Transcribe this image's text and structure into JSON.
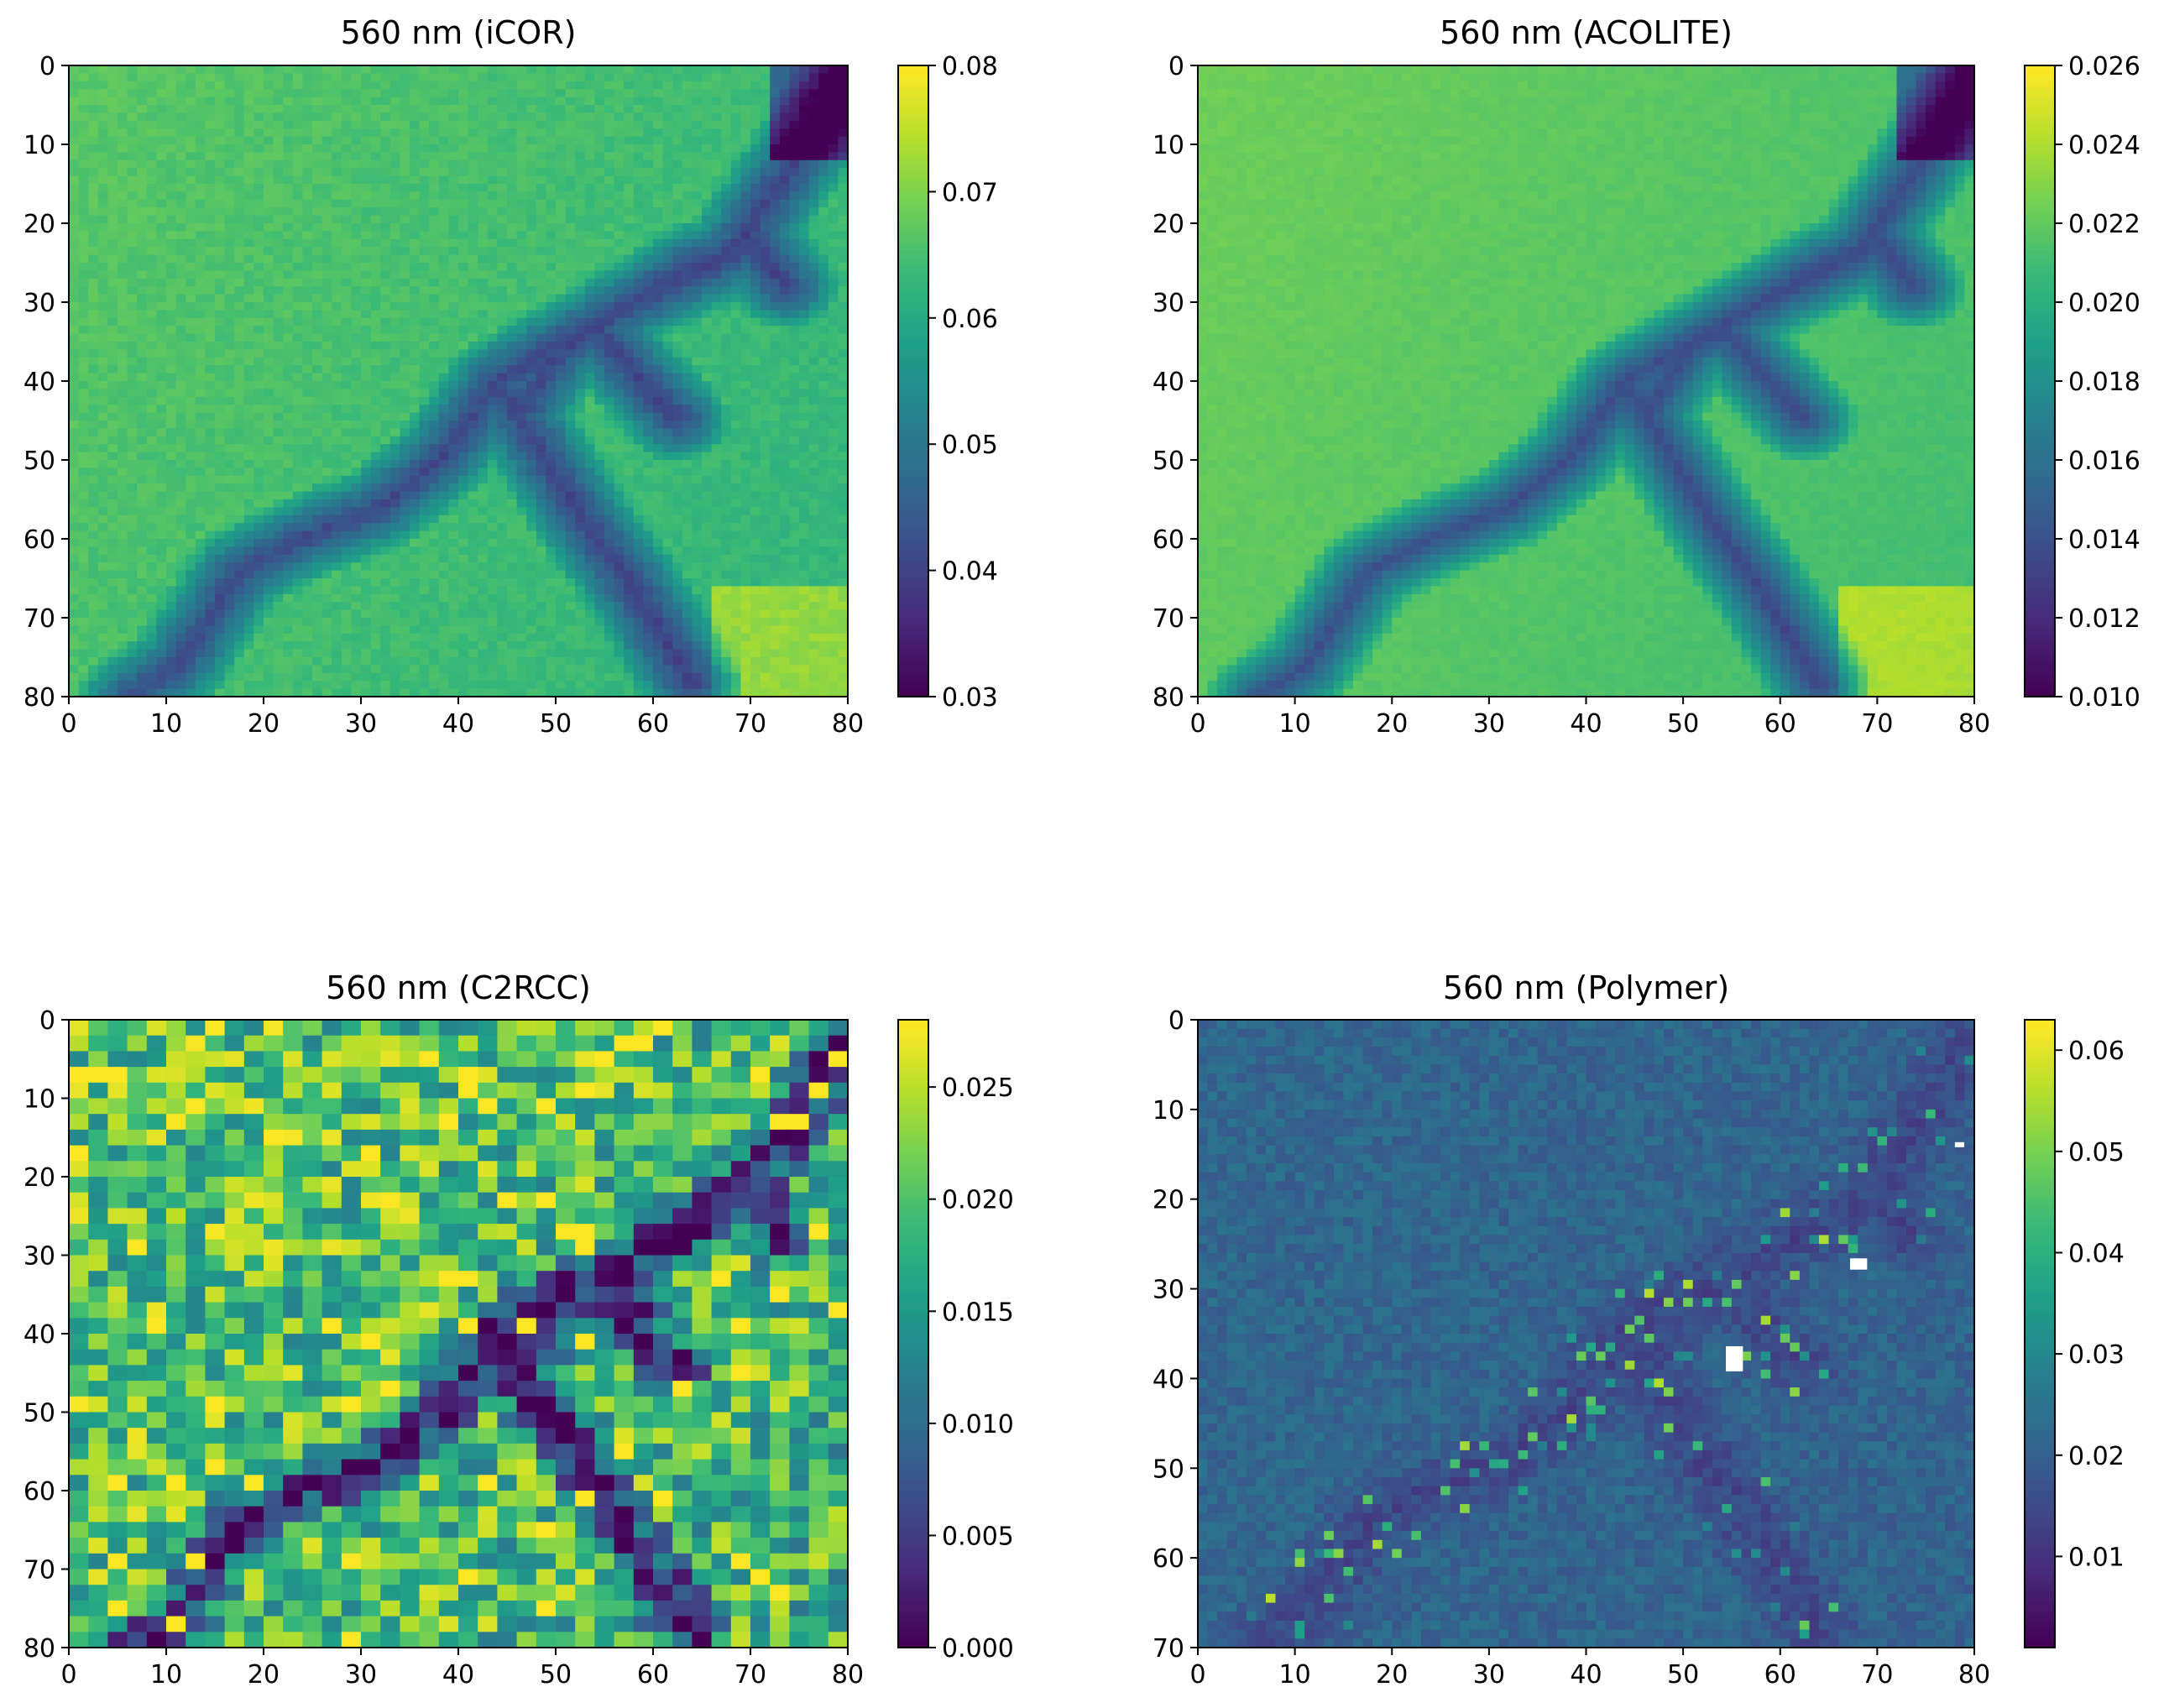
{
  "colormap": "viridis",
  "colormap_stops": [
    "#440154",
    "#482878",
    "#3e4a89",
    "#31688e",
    "#26828e",
    "#1f9e89",
    "#35b779",
    "#6ece58",
    "#b5de2b",
    "#fde725"
  ],
  "chart_data": [
    {
      "type": "heatmap",
      "title": "560 nm (iCOR)",
      "x_ticks": [
        0,
        10,
        20,
        30,
        40,
        50,
        60,
        70,
        80
      ],
      "y_ticks": [
        0,
        10,
        20,
        30,
        40,
        50,
        60,
        70,
        80
      ],
      "xlim": [
        0,
        80
      ],
      "ylim": [
        80,
        0
      ],
      "grid_shape": [
        80,
        80
      ],
      "value_range": [
        0.03,
        0.08
      ],
      "colorbar_ticks": [
        "0.03",
        "0.04",
        "0.05",
        "0.06",
        "0.07",
        "0.08"
      ],
      "colorbar_values": [
        0.03,
        0.04,
        0.05,
        0.06,
        0.07,
        0.08
      ],
      "background_level": 0.064,
      "feature_level": 0.04,
      "noise": 0.04,
      "bottom_right_bright": true
    },
    {
      "type": "heatmap",
      "title": "560 nm (ACOLITE)",
      "x_ticks": [
        0,
        10,
        20,
        30,
        40,
        50,
        60,
        70,
        80
      ],
      "y_ticks": [
        0,
        10,
        20,
        30,
        40,
        50,
        60,
        70,
        80
      ],
      "xlim": [
        0,
        80
      ],
      "ylim": [
        80,
        0
      ],
      "grid_shape": [
        80,
        80
      ],
      "value_range": [
        0.01,
        0.026
      ],
      "colorbar_ticks": [
        "0.010",
        "0.012",
        "0.014",
        "0.016",
        "0.018",
        "0.020",
        "0.022",
        "0.024",
        "0.026"
      ],
      "colorbar_values": [
        0.01,
        0.012,
        0.014,
        0.016,
        0.018,
        0.02,
        0.022,
        0.024,
        0.026
      ],
      "background_level": 0.0215,
      "feature_level": 0.0135,
      "noise": 0.02,
      "bottom_right_bright": true
    },
    {
      "type": "heatmap",
      "title": "560 nm (C2RCC)",
      "x_ticks": [
        0,
        10,
        20,
        30,
        40,
        50,
        60,
        70,
        80
      ],
      "y_ticks": [
        0,
        10,
        20,
        30,
        40,
        50,
        60,
        70,
        80
      ],
      "xlim": [
        0,
        80
      ],
      "ylim": [
        80,
        0
      ],
      "grid_shape": [
        40,
        40
      ],
      "value_range": [
        0.0,
        0.028
      ],
      "colorbar_ticks": [
        "0.000",
        "0.005",
        "0.010",
        "0.015",
        "0.020",
        "0.025"
      ],
      "colorbar_values": [
        0.0,
        0.005,
        0.01,
        0.015,
        0.02,
        0.025
      ],
      "background_level": 0.019,
      "feature_level": 0.0005,
      "noise": 0.18,
      "bottom_right_bright": false
    },
    {
      "type": "heatmap",
      "title": "560 nm (Polymer)",
      "x_ticks": [
        0,
        10,
        20,
        30,
        40,
        50,
        60,
        70,
        80
      ],
      "y_ticks": [
        0,
        10,
        20,
        30,
        40,
        50,
        60,
        70
      ],
      "xlim": [
        0,
        80
      ],
      "ylim": [
        70,
        0
      ],
      "grid_shape": [
        70,
        80
      ],
      "value_range": [
        0.001,
        0.063
      ],
      "colorbar_ticks": [
        "0.01",
        "0.02",
        "0.03",
        "0.04",
        "0.05",
        "0.06"
      ],
      "colorbar_values": [
        0.01,
        0.02,
        0.03,
        0.04,
        0.05,
        0.06
      ],
      "background_level": 0.021,
      "feature_level": 0.014,
      "noise": 0.08,
      "bottom_right_bright": false
    }
  ]
}
